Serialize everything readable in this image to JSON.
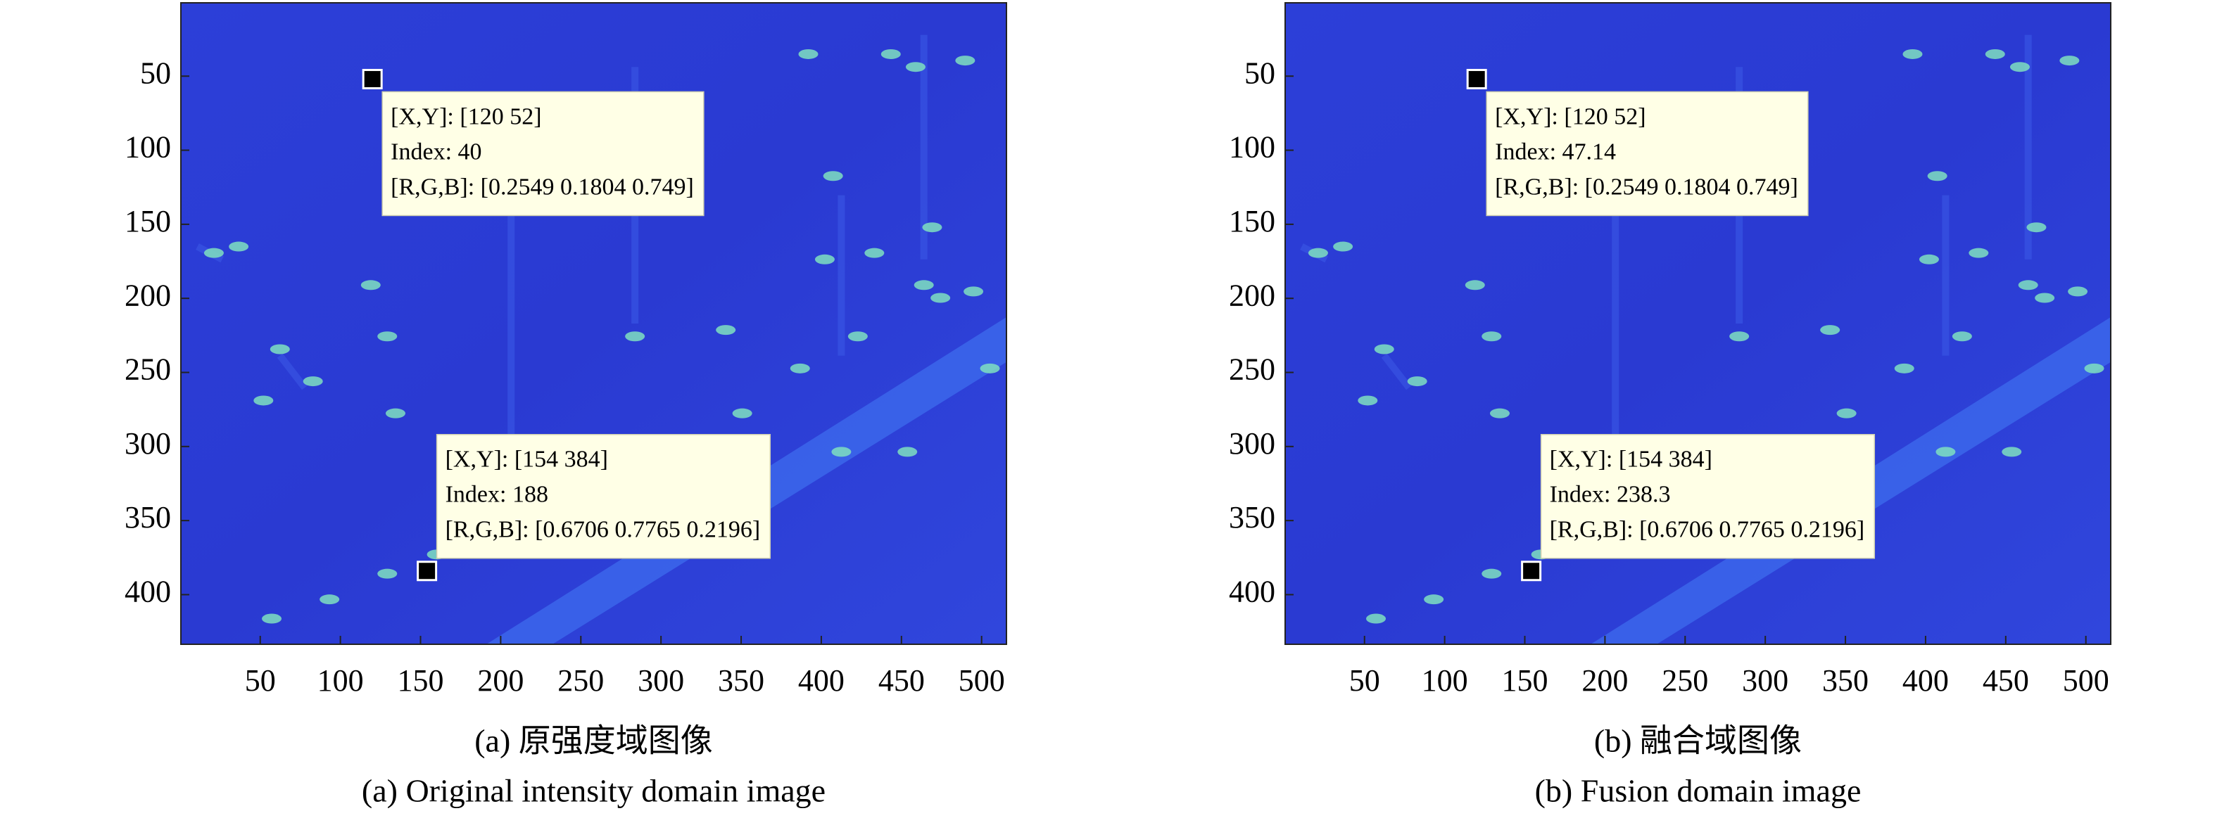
{
  "chart_data": [
    {
      "type": "image",
      "caption": "(a) 原强度域图像",
      "caption_en": "(a) Original intensity domain image",
      "xlim": [
        0.5,
        515.5
      ],
      "ylim": [
        0.5,
        433.5
      ],
      "xticks": [
        50,
        100,
        150,
        200,
        250,
        300,
        350,
        400,
        450,
        500
      ],
      "yticks": [
        50,
        100,
        150,
        200,
        250,
        300,
        350,
        400
      ],
      "datatips": [
        {
          "xy_label": "[X,Y]:",
          "x": 120,
          "y": 52,
          "position_label": "[120 52]",
          "index_label": "Index:",
          "index": 40,
          "rgb_label": "[R,G,B]:",
          "rgb": "[0.2549 0.1804 0.749]"
        },
        {
          "xy_label": "[X,Y]:",
          "x": 154,
          "y": 384,
          "position_label": "[154 384]",
          "index_label": "Index:",
          "index": 188,
          "rgb_label": "[R,G,B]:",
          "rgb": "[0.6706 0.7765 0.2196]"
        }
      ]
    },
    {
      "type": "image",
      "caption": "(b) 融合域图像",
      "caption_en": "(b) Fusion domain image",
      "xlim": [
        0.5,
        515.5
      ],
      "ylim": [
        0.5,
        433.5
      ],
      "xticks": [
        50,
        100,
        150,
        200,
        250,
        300,
        350,
        400,
        450,
        500
      ],
      "yticks": [
        50,
        100,
        150,
        200,
        250,
        300,
        350,
        400
      ],
      "datatips": [
        {
          "xy_label": "[X,Y]:",
          "x": 120,
          "y": 52,
          "position_label": "[120 52]",
          "index_label": "Index:",
          "index": 47.14,
          "rgb_label": "[R,G,B]:",
          "rgb": "[0.2549 0.1804 0.749]"
        },
        {
          "xy_label": "[X,Y]:",
          "x": 154,
          "y": 384,
          "position_label": "[154 384]",
          "index_label": "Index:",
          "index": 238.3,
          "rgb_label": "[R,G,B]:",
          "rgb": "[0.6706 0.7765 0.2196]"
        }
      ]
    }
  ]
}
